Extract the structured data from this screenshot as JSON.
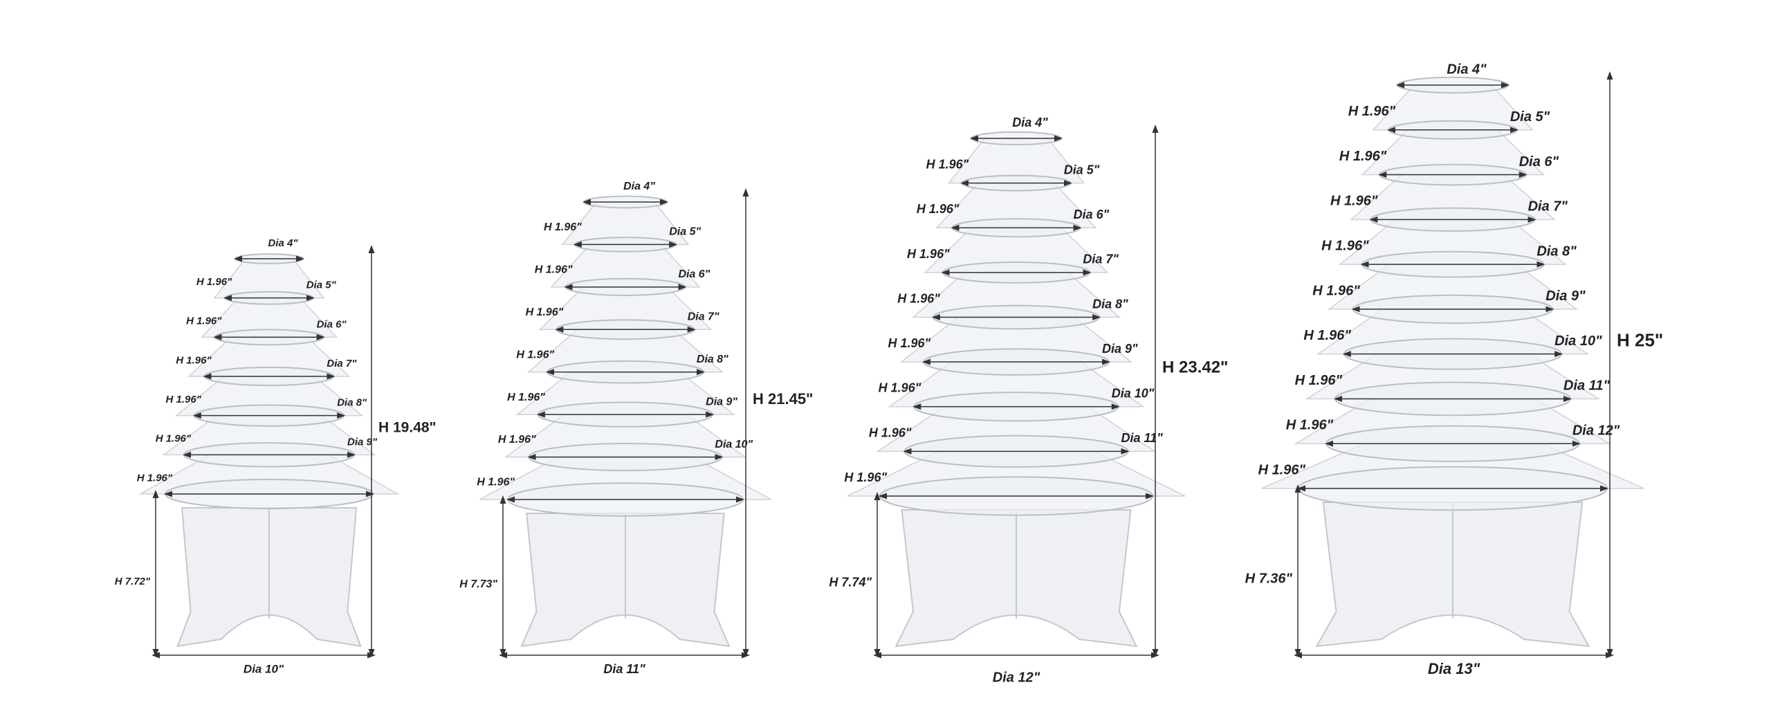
{
  "towers": [
    {
      "dia_labels": [
        "Dia 4\"",
        "Dia 5\"",
        "Dia 6\"",
        "Dia 7\"",
        "Dia 8\"",
        "Dia 9\""
      ],
      "height_labels": [
        "H 1.96\"",
        "H 1.96\"",
        "H 1.96\"",
        "H 1.96\"",
        "H 1.96\"",
        "H 1.96\""
      ],
      "total_height": "H 19.48\"",
      "base_height": "H 7.72\"",
      "base_dia": "Dia 10\""
    },
    {
      "dia_labels": [
        "Dia 4\"",
        "Dia 5\"",
        "Dia 6\"",
        "Dia 7\"",
        "Dia 8\"",
        "Dia 9\"",
        "Dia 10\""
      ],
      "height_labels": [
        "H 1.96\"",
        "H 1.96\"",
        "H 1.96\"",
        "H 1.96\"",
        "H 1.96\"",
        "H 1.96\"",
        "H 1.96\""
      ],
      "total_height": "H 21.45\"",
      "base_height": "H 7.73\"",
      "base_dia": "Dia 11\""
    },
    {
      "dia_labels": [
        "Dia 4\"",
        "Dia 5\"",
        "Dia 6\"",
        "Dia 7\"",
        "Dia 8\"",
        "Dia 9\"",
        "Dia 10\"",
        "Dia 11\""
      ],
      "height_labels": [
        "H 1.96\"",
        "H 1.96\"",
        "H 1.96\"",
        "H 1.96\"",
        "H 1.96\"",
        "H 1.96\"",
        "H 1.96\"",
        "H 1.96\""
      ],
      "total_height": "H 23.42\"",
      "base_height": "H 7.74\"",
      "base_dia": "Dia 12\""
    },
    {
      "dia_labels": [
        "Dia 4\"",
        "Dia 5\"",
        "Dia 6\"",
        "Dia 7\"",
        "Dia 8\"",
        "Dia 9\"",
        "Dia 10\"",
        "Dia 11\"",
        "Dia 12\""
      ],
      "height_labels": [
        "H 1.96\"",
        "H 1.96\"",
        "H 1.96\"",
        "H 1.96\"",
        "H 1.96\"",
        "H 1.96\"",
        "H 1.96\"",
        "H 1.96\"",
        "H 1.96\""
      ],
      "total_height": "H 25\"",
      "base_height": "H 7.36\"",
      "base_dia": "Dia 13\""
    }
  ]
}
